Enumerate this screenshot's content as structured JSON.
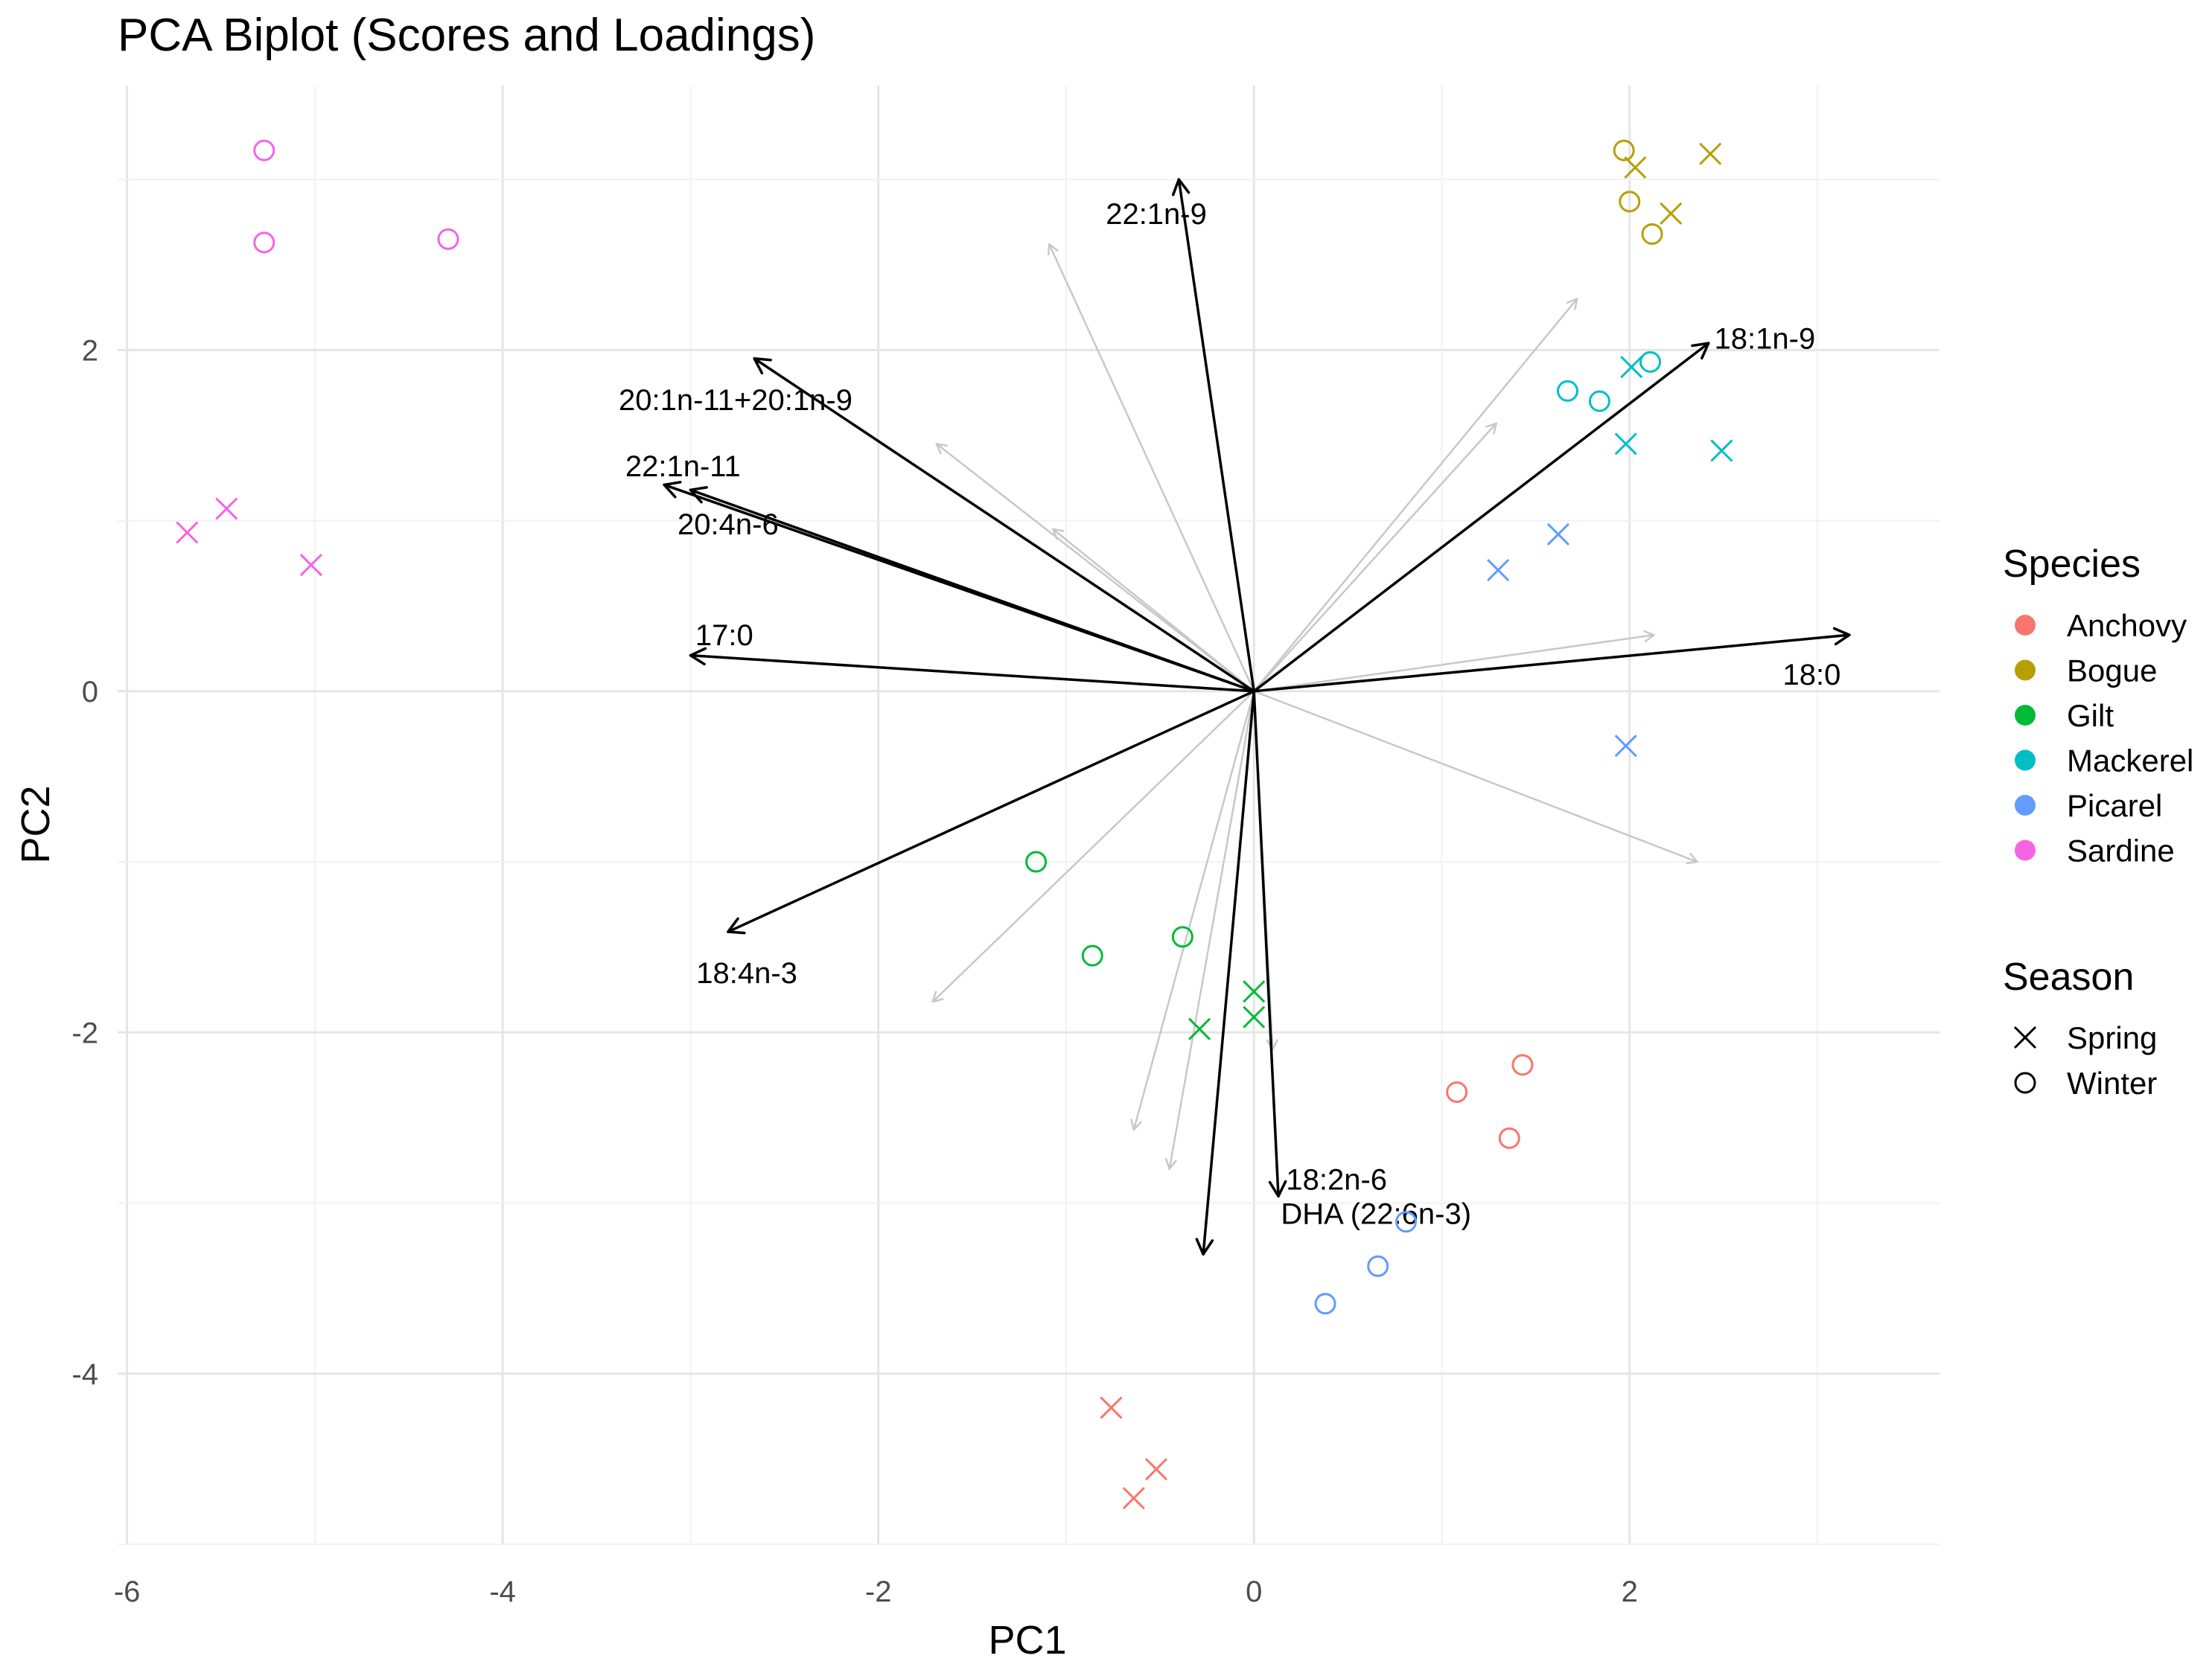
{
  "chart_data": {
    "type": "scatter",
    "title": "PCA Biplot (Scores and Loadings)",
    "xlabel": "PC1",
    "ylabel": "PC2",
    "xlim": [
      -6.05,
      3.65
    ],
    "ylim": [
      -5.0,
      3.55
    ],
    "grid": true,
    "x_ticks": [
      -6,
      -4,
      -2,
      0,
      2
    ],
    "y_ticks": [
      -4,
      -2,
      0,
      2
    ],
    "x_tick_labels": [
      "-6",
      "-4",
      "-2",
      "0",
      "2"
    ],
    "y_tick_labels": [
      "-4",
      "-2",
      "0",
      "2"
    ],
    "legend_species": {
      "title": "Species",
      "entries": [
        {
          "label": "Anchovy",
          "color": "#F8766D"
        },
        {
          "label": "Bogue",
          "color": "#B79F00"
        },
        {
          "label": "Gilt",
          "color": "#00BA38"
        },
        {
          "label": "Mackerel",
          "color": "#00BFC4"
        },
        {
          "label": "Picarel",
          "color": "#619CFF"
        },
        {
          "label": "Sardine",
          "color": "#F564E3"
        }
      ]
    },
    "legend_season": {
      "title": "Season",
      "entries": [
        {
          "label": "Spring",
          "shape": "cross"
        },
        {
          "label": "Winter",
          "shape": "circle"
        }
      ]
    },
    "scores": [
      {
        "species": "Anchovy",
        "season": "Winter",
        "x": 1.08,
        "y": -2.35
      },
      {
        "species": "Anchovy",
        "season": "Winter",
        "x": 1.43,
        "y": -2.19
      },
      {
        "species": "Anchovy",
        "season": "Winter",
        "x": 1.36,
        "y": -2.62
      },
      {
        "species": "Anchovy",
        "season": "Spring",
        "x": -0.76,
        "y": -4.2
      },
      {
        "species": "Anchovy",
        "season": "Spring",
        "x": -0.52,
        "y": -4.56
      },
      {
        "species": "Anchovy",
        "season": "Spring",
        "x": -0.64,
        "y": -4.73
      },
      {
        "species": "Bogue",
        "season": "Winter",
        "x": 1.97,
        "y": 3.17
      },
      {
        "species": "Bogue",
        "season": "Winter",
        "x": 2.0,
        "y": 2.87
      },
      {
        "species": "Bogue",
        "season": "Winter",
        "x": 2.12,
        "y": 2.68
      },
      {
        "species": "Bogue",
        "season": "Spring",
        "x": 2.03,
        "y": 3.07
      },
      {
        "species": "Bogue",
        "season": "Spring",
        "x": 2.43,
        "y": 3.15
      },
      {
        "species": "Bogue",
        "season": "Spring",
        "x": 2.22,
        "y": 2.8
      },
      {
        "species": "Gilt",
        "season": "Winter",
        "x": -1.16,
        "y": -1.0
      },
      {
        "species": "Gilt",
        "season": "Winter",
        "x": -0.86,
        "y": -1.55
      },
      {
        "species": "Gilt",
        "season": "Winter",
        "x": -0.38,
        "y": -1.44
      },
      {
        "species": "Gilt",
        "season": "Spring",
        "x": 0.0,
        "y": -1.76
      },
      {
        "species": "Gilt",
        "season": "Spring",
        "x": 0.0,
        "y": -1.91
      },
      {
        "species": "Gilt",
        "season": "Spring",
        "x": -0.29,
        "y": -1.98
      },
      {
        "species": "Mackerel",
        "season": "Winter",
        "x": 1.67,
        "y": 1.76
      },
      {
        "species": "Mackerel",
        "season": "Winter",
        "x": 1.84,
        "y": 1.7
      },
      {
        "species": "Mackerel",
        "season": "Winter",
        "x": 2.11,
        "y": 1.93
      },
      {
        "species": "Mackerel",
        "season": "Spring",
        "x": 2.01,
        "y": 1.9
      },
      {
        "species": "Mackerel",
        "season": "Spring",
        "x": 1.98,
        "y": 1.45
      },
      {
        "species": "Mackerel",
        "season": "Spring",
        "x": 2.49,
        "y": 1.41
      },
      {
        "species": "Picarel",
        "season": "Winter",
        "x": 0.81,
        "y": -3.11
      },
      {
        "species": "Picarel",
        "season": "Winter",
        "x": 0.66,
        "y": -3.37
      },
      {
        "species": "Picarel",
        "season": "Winter",
        "x": 0.38,
        "y": -3.59
      },
      {
        "species": "Picarel",
        "season": "Spring",
        "x": 1.3,
        "y": 0.71
      },
      {
        "species": "Picarel",
        "season": "Spring",
        "x": 1.62,
        "y": 0.92
      },
      {
        "species": "Picarel",
        "season": "Spring",
        "x": 1.98,
        "y": -0.32
      },
      {
        "species": "Sardine",
        "season": "Winter",
        "x": -5.27,
        "y": 3.17
      },
      {
        "species": "Sardine",
        "season": "Winter",
        "x": -5.27,
        "y": 2.63
      },
      {
        "species": "Sardine",
        "season": "Winter",
        "x": -4.29,
        "y": 2.65
      },
      {
        "species": "Sardine",
        "season": "Spring",
        "x": -5.68,
        "y": 0.93
      },
      {
        "species": "Sardine",
        "season": "Spring",
        "x": -5.47,
        "y": 1.07
      },
      {
        "species": "Sardine",
        "season": "Spring",
        "x": -5.02,
        "y": 0.74
      }
    ],
    "loadings_labeled": [
      {
        "name": "22:1n-9",
        "x": -0.4,
        "y": 3.0
      },
      {
        "name": "18:1n-9",
        "x": 2.42,
        "y": 2.04
      },
      {
        "name": "20:1n-11+20:1n-9",
        "x": -2.66,
        "y": 1.95
      },
      {
        "name": "22:1n-11",
        "x": -3.14,
        "y": 1.21
      },
      {
        "name": "20:4n-6",
        "x": -3.0,
        "y": 1.18
      },
      {
        "name": "17:0",
        "x": -3.0,
        "y": 0.21
      },
      {
        "name": "18:0",
        "x": 3.17,
        "y": 0.33
      },
      {
        "name": "18:4n-3",
        "x": -2.8,
        "y": -1.41
      },
      {
        "name": "18:2n-6",
        "x": 0.13,
        "y": -2.96
      },
      {
        "name": "DHA (22:6n-3)",
        "x": -0.27,
        "y": -3.3
      }
    ],
    "loadings_unlabeled": [
      {
        "x": -1.09,
        "y": 2.62
      },
      {
        "x": 1.72,
        "y": 2.3
      },
      {
        "x": 1.29,
        "y": 1.57
      },
      {
        "x": -1.69,
        "y": 1.45
      },
      {
        "x": -1.07,
        "y": 0.95
      },
      {
        "x": 2.13,
        "y": 0.33
      },
      {
        "x": 2.36,
        "y": -1.0
      },
      {
        "x": -1.71,
        "y": -1.82
      },
      {
        "x": 0.1,
        "y": -2.1
      },
      {
        "x": -0.64,
        "y": -2.57
      },
      {
        "x": -0.45,
        "y": -2.8
      }
    ]
  }
}
